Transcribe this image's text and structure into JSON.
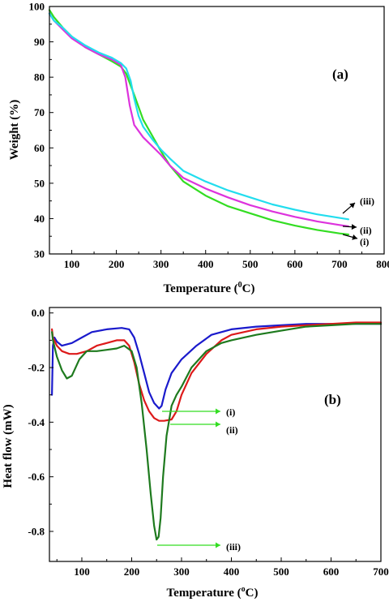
{
  "chart_data": [
    {
      "panel": "(a)",
      "type": "line",
      "xlabel": "Temperature (",
      "xlabel_sup": "0",
      "xlabel_end": "C)",
      "ylabel": "Weight (%)",
      "xlim": [
        50,
        800
      ],
      "ylim": [
        30,
        100
      ],
      "xticks": [
        100,
        200,
        300,
        400,
        500,
        600,
        700,
        800
      ],
      "yticks": [
        30,
        40,
        50,
        60,
        70,
        80,
        90,
        100
      ],
      "grid": false,
      "series": [
        {
          "name": "(i)",
          "color": "#33dd22",
          "x": [
            50,
            60,
            80,
            100,
            130,
            160,
            190,
            210,
            222,
            240,
            260,
            280,
            300,
            320,
            350,
            400,
            450,
            500,
            550,
            600,
            650,
            700,
            720
          ],
          "y": [
            99,
            97,
            94,
            91.5,
            88.5,
            86.5,
            84.5,
            83,
            81,
            75,
            68,
            63.5,
            59,
            55,
            50.5,
            46.5,
            43.5,
            41.5,
            39.5,
            38,
            36.8,
            35.8,
            35.5
          ]
        },
        {
          "name": "(ii)",
          "color": "#dd33dd",
          "x": [
            50,
            60,
            80,
            100,
            130,
            160,
            190,
            210,
            220,
            230,
            240,
            260,
            280,
            300,
            320,
            350,
            400,
            450,
            500,
            550,
            600,
            650,
            700,
            720
          ],
          "y": [
            98,
            96,
            93.5,
            91,
            88.5,
            86.5,
            85,
            83.5,
            80,
            72,
            66.5,
            63,
            60.5,
            58,
            55,
            51.5,
            48.5,
            46,
            43.8,
            42,
            40.5,
            39.2,
            38.2,
            37.8
          ]
        },
        {
          "name": "(iii)",
          "color": "#22ddee",
          "x": [
            50,
            60,
            80,
            100,
            130,
            160,
            190,
            210,
            222,
            232,
            240,
            250,
            260,
            280,
            300,
            320,
            350,
            400,
            450,
            500,
            550,
            600,
            650,
            700,
            720
          ],
          "y": [
            98,
            96,
            94,
            91.5,
            89,
            87,
            85.5,
            84,
            82.5,
            79,
            74,
            69,
            66,
            62.5,
            59.5,
            57,
            53.5,
            50.5,
            48,
            46,
            44,
            42.5,
            41.2,
            40.2,
            39.8
          ]
        }
      ],
      "annotations": [
        "(iii)",
        "(ii)",
        "(i)"
      ]
    },
    {
      "panel": "(b)",
      "type": "line",
      "xlabel": "Temperature (",
      "xlabel_sup": "o",
      "xlabel_end": "C)",
      "ylabel": "Heat flow (mW)",
      "xlim": [
        35,
        700
      ],
      "ylim": [
        -0.91,
        0.02
      ],
      "xticks": [
        100,
        200,
        300,
        400,
        500,
        600,
        700
      ],
      "xtick_labels": [
        "100",
        "200",
        "300",
        "400",
        "500",
        "600",
        "700"
      ],
      "yticks": [
        0.0,
        -0.2,
        -0.4,
        -0.6,
        -0.8
      ],
      "ytick_labels": [
        "0.0",
        "-0.2",
        "-0.4",
        "-0.6",
        "-0.8"
      ],
      "grid": false,
      "series": [
        {
          "name": "(i)",
          "color": "#1a1acc",
          "x": [
            40,
            42,
            45,
            50,
            60,
            80,
            100,
            120,
            150,
            180,
            195,
            205,
            215,
            225,
            235,
            245,
            255,
            260,
            268,
            280,
            300,
            330,
            360,
            400,
            450,
            500,
            550,
            600,
            650,
            700
          ],
          "y": [
            -0.3,
            -0.12,
            -0.09,
            -0.105,
            -0.12,
            -0.11,
            -0.09,
            -0.07,
            -0.06,
            -0.055,
            -0.06,
            -0.09,
            -0.15,
            -0.22,
            -0.29,
            -0.33,
            -0.35,
            -0.34,
            -0.28,
            -0.22,
            -0.17,
            -0.12,
            -0.08,
            -0.06,
            -0.05,
            -0.045,
            -0.04,
            -0.04,
            -0.04,
            -0.04
          ]
        },
        {
          "name": "(ii)",
          "color": "#dd1a1a",
          "x": [
            40,
            42,
            50,
            60,
            75,
            90,
            110,
            130,
            150,
            170,
            185,
            195,
            205,
            215,
            225,
            235,
            245,
            255,
            265,
            280,
            290,
            300,
            320,
            350,
            380,
            400,
            450,
            500,
            550,
            600,
            650,
            700
          ],
          "y": [
            -0.06,
            -0.09,
            -0.12,
            -0.14,
            -0.15,
            -0.15,
            -0.14,
            -0.12,
            -0.11,
            -0.1,
            -0.1,
            -0.12,
            -0.18,
            -0.26,
            -0.32,
            -0.36,
            -0.385,
            -0.395,
            -0.395,
            -0.39,
            -0.36,
            -0.3,
            -0.22,
            -0.15,
            -0.1,
            -0.08,
            -0.06,
            -0.05,
            -0.045,
            -0.04,
            -0.035,
            -0.035
          ]
        },
        {
          "name": "(iii)",
          "color": "#1e7a1e",
          "x": [
            40,
            42,
            50,
            60,
            70,
            80,
            95,
            110,
            130,
            150,
            170,
            185,
            200,
            210,
            220,
            230,
            238,
            245,
            250,
            254,
            258,
            263,
            270,
            280,
            290,
            300,
            320,
            350,
            380,
            400,
            450,
            500,
            550,
            600,
            650,
            700
          ],
          "y": [
            -0.07,
            -0.1,
            -0.16,
            -0.21,
            -0.24,
            -0.23,
            -0.17,
            -0.14,
            -0.14,
            -0.135,
            -0.13,
            -0.12,
            -0.14,
            -0.2,
            -0.33,
            -0.5,
            -0.66,
            -0.78,
            -0.83,
            -0.82,
            -0.75,
            -0.6,
            -0.45,
            -0.34,
            -0.3,
            -0.27,
            -0.2,
            -0.14,
            -0.11,
            -0.1,
            -0.08,
            -0.065,
            -0.05,
            -0.045,
            -0.04,
            -0.04
          ]
        }
      ],
      "annotations": [
        "(i)",
        "(ii)",
        "(iii)"
      ]
    }
  ]
}
